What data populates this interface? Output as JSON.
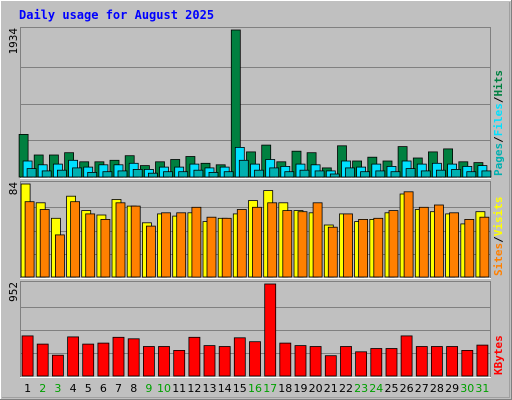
{
  "chart_data": {
    "type": "bar",
    "title": "Daily usage for August 2025",
    "categories": [
      "1",
      "2",
      "3",
      "4",
      "5",
      "6",
      "7",
      "8",
      "9",
      "10",
      "11",
      "12",
      "13",
      "14",
      "15",
      "16",
      "17",
      "18",
      "19",
      "20",
      "21",
      "22",
      "23",
      "24",
      "25",
      "26",
      "27",
      "28",
      "29",
      "30",
      "31"
    ],
    "weekend_days": [
      "2",
      "3",
      "9",
      "10",
      "16",
      "17",
      "23",
      "24",
      "30",
      "31"
    ],
    "panels": [
      {
        "name": "hits-files-pages",
        "ymax_label": "1934",
        "ylim": [
          0,
          1934
        ],
        "right_label_parts": [
          "Pages",
          "/",
          "Files",
          "/",
          "Hits"
        ],
        "series": [
          {
            "name": "Hits",
            "color": "#008040",
            "values": [
              560,
              290,
              290,
              320,
              200,
              200,
              220,
              280,
              150,
              200,
              230,
              270,
              180,
              160,
              1934,
              330,
              420,
              200,
              340,
              320,
              120,
              410,
              210,
              260,
              210,
              400,
              250,
              330,
              370,
              200,
              190
            ]
          },
          {
            "name": "Files",
            "color": "#00e0ff",
            "values": [
              210,
              160,
              170,
              220,
              130,
              160,
              160,
              180,
              100,
              130,
              130,
              170,
              120,
              130,
              390,
              170,
              230,
              140,
              170,
              160,
              80,
              210,
              130,
              170,
              140,
              210,
              170,
              180,
              170,
              140,
              150
            ]
          },
          {
            "name": "Pages",
            "color": "#00b0b0",
            "values": [
              110,
              80,
              90,
              120,
              60,
              70,
              80,
              100,
              50,
              70,
              70,
              90,
              60,
              70,
              220,
              90,
              120,
              70,
              90,
              80,
              40,
              120,
              70,
              80,
              70,
              110,
              80,
              90,
              100,
              70,
              80
            ]
          }
        ]
      },
      {
        "name": "visits-sites",
        "ymax_label": "84",
        "ylim": [
          0,
          84
        ],
        "right_label_parts": [
          "Sites",
          "/",
          "Visits"
        ],
        "series": [
          {
            "name": "Visits",
            "color": "#ffff00",
            "values": [
              84,
              67,
              53,
              73,
              60,
              56,
              70,
              64,
              49,
              57,
              55,
              58,
              50,
              53,
              57,
              69,
              78,
              67,
              60,
              58,
              47,
              57,
              50,
              52,
              58,
              75,
              61,
              59,
              57,
              48,
              59
            ]
          },
          {
            "name": "Sites",
            "color": "#ff8000",
            "values": [
              68,
              61,
              38,
              68,
              57,
              52,
              67,
              64,
              46,
              58,
              58,
              63,
              54,
              53,
              61,
              63,
              67,
              60,
              59,
              67,
              45,
              57,
              52,
              53,
              60,
              77,
              63,
              65,
              58,
              52,
              54
            ]
          }
        ]
      },
      {
        "name": "kbytes",
        "ymax_label": "952",
        "ylim": [
          0,
          952
        ],
        "right_label_parts": [
          "KBytes"
        ],
        "series": [
          {
            "name": "KBytes",
            "color": "#ff0000",
            "values": [
              415,
              330,
              215,
              405,
              330,
              340,
              400,
              385,
              305,
              305,
              265,
              400,
              315,
              305,
              395,
              355,
              952,
              340,
              315,
              305,
              210,
              305,
              250,
              285,
              285,
              415,
              305,
              305,
              305,
              265,
              320
            ]
          }
        ]
      }
    ]
  },
  "colors": {
    "background": "#c0c0c0",
    "plot_background": "#c0c0c0",
    "title_text": "#0000ff",
    "axis_text": "#000000",
    "weekday_label": "#000000",
    "weekend_label": "#00a000",
    "gridline": "#808080"
  }
}
